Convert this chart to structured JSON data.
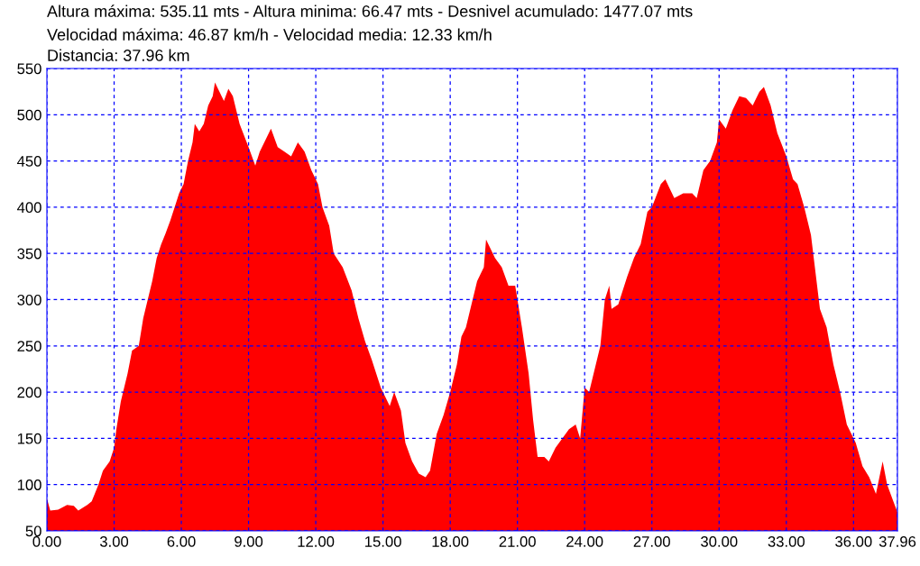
{
  "chart_data": {
    "type": "area",
    "title": "Altura máxima: 535.11 mts - Altura minima: 66.47 mts - Desnivel acumulado: 1477.07 mts",
    "subtitle": "Velocidad máxima: 46.87 km/h - Velocidad media: 12.33 km/h",
    "annotations": [
      "Distancia: 37.96 km"
    ],
    "x": [
      0.0,
      0.15,
      0.5,
      0.9,
      1.2,
      1.4,
      1.8,
      2.0,
      2.3,
      2.5,
      2.8,
      3.0,
      3.1,
      3.3,
      3.6,
      3.8,
      4.1,
      4.3,
      4.5,
      4.7,
      4.9,
      5.1,
      5.3,
      5.5,
      5.7,
      5.9,
      6.1,
      6.3,
      6.5,
      6.6,
      6.8,
      7.0,
      7.2,
      7.4,
      7.5,
      7.7,
      7.9,
      8.1,
      8.3,
      8.6,
      9.0,
      9.3,
      9.5,
      9.8,
      10.0,
      10.3,
      10.6,
      10.9,
      11.2,
      11.5,
      11.8,
      12.1,
      12.3,
      12.6,
      12.8,
      13.2,
      13.6,
      13.9,
      14.2,
      14.5,
      14.9,
      15.1,
      15.3,
      15.5,
      15.8,
      16.0,
      16.3,
      16.6,
      16.9,
      17.1,
      17.4,
      17.7,
      18.0,
      18.3,
      18.5,
      18.7,
      19.0,
      19.2,
      19.5,
      19.6,
      19.8,
      20.0,
      20.3,
      20.6,
      20.9,
      21.2,
      21.5,
      21.7,
      21.9,
      22.2,
      22.4,
      22.7,
      23.0,
      23.3,
      23.6,
      23.8,
      24.0,
      24.2,
      24.5,
      24.7,
      24.9,
      25.1,
      25.2,
      25.5,
      25.9,
      26.2,
      26.5,
      26.8,
      27.0,
      27.4,
      27.6,
      28.0,
      28.4,
      28.8,
      29.0,
      29.3,
      29.6,
      29.9,
      30.0,
      30.3,
      30.6,
      30.9,
      31.2,
      31.5,
      31.8,
      32.0,
      32.3,
      32.6,
      33.0,
      33.3,
      33.5,
      33.8,
      34.1,
      34.3,
      34.5,
      34.8,
      35.1,
      35.4,
      35.7,
      36.1,
      36.4,
      36.7,
      37.0,
      37.3,
      37.5,
      37.96
    ],
    "series": [
      {
        "color": "#ff0000",
        "values": [
          85,
          72,
          73,
          78,
          77,
          72,
          78,
          82,
          100,
          115,
          125,
          140,
          160,
          190,
          220,
          245,
          250,
          280,
          300,
          320,
          345,
          360,
          372,
          385,
          400,
          415,
          425,
          450,
          470,
          490,
          482,
          490,
          510,
          520,
          535,
          525,
          515,
          528,
          520,
          490,
          465,
          445,
          460,
          475,
          485,
          465,
          460,
          455,
          470,
          460,
          440,
          425,
          400,
          380,
          350,
          335,
          310,
          280,
          255,
          235,
          205,
          195,
          185,
          200,
          180,
          145,
          125,
          112,
          108,
          115,
          155,
          175,
          200,
          230,
          260,
          270,
          300,
          320,
          335,
          365,
          355,
          345,
          335,
          315,
          315,
          270,
          220,
          170,
          130,
          130,
          125,
          140,
          150,
          160,
          165,
          150,
          205,
          200,
          230,
          250,
          300,
          315,
          290,
          295,
          325,
          345,
          360,
          395,
          400,
          425,
          430,
          410,
          415,
          415,
          410,
          440,
          450,
          470,
          495,
          485,
          505,
          520,
          518,
          510,
          525,
          530,
          510,
          480,
          455,
          430,
          425,
          400,
          370,
          330,
          290,
          270,
          230,
          200,
          165,
          145,
          120,
          108,
          90,
          125,
          100,
          70
        ]
      }
    ],
    "xlim": [
      0,
      37.96
    ],
    "ylim": [
      50,
      550
    ],
    "xticks": [
      {
        "value": 0,
        "label": "0.00"
      },
      {
        "value": 3,
        "label": "3.00"
      },
      {
        "value": 6,
        "label": "6.00"
      },
      {
        "value": 9,
        "label": "9.00"
      },
      {
        "value": 12,
        "label": "12.00"
      },
      {
        "value": 15,
        "label": "15.00"
      },
      {
        "value": 18,
        "label": "18.00"
      },
      {
        "value": 21,
        "label": "21.00"
      },
      {
        "value": 24,
        "label": "24.00"
      },
      {
        "value": 27,
        "label": "27.00"
      },
      {
        "value": 30,
        "label": "30.00"
      },
      {
        "value": 33,
        "label": "33.00"
      },
      {
        "value": 36,
        "label": "36.00"
      },
      {
        "value": 37.96,
        "label": "37.96"
      }
    ],
    "yticks": [
      50,
      100,
      150,
      200,
      250,
      300,
      350,
      400,
      450,
      500,
      550
    ],
    "grid": true,
    "line_style": "dashed"
  }
}
